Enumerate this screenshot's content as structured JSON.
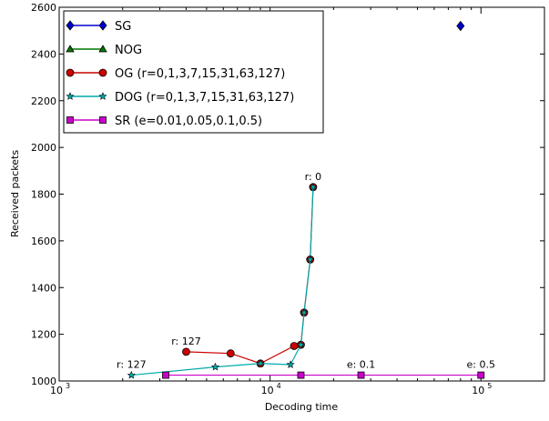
{
  "chart_data": {
    "type": "line",
    "title": "",
    "xlabel": "Decoding time",
    "ylabel": "Received packets",
    "xscale": "log",
    "xlim": [
      1000,
      200000
    ],
    "ylim": [
      1000,
      2600
    ],
    "x_ticks": [
      {
        "value": 1000,
        "base": "10",
        "exp": "3"
      },
      {
        "value": 10000,
        "base": "10",
        "exp": "4"
      },
      {
        "value": 100000,
        "base": "10",
        "exp": "5"
      }
    ],
    "y_ticks": [
      1000,
      1200,
      1400,
      1600,
      1800,
      2000,
      2200,
      2400,
      2600
    ],
    "grid": false,
    "legend_position": "top-left",
    "series": [
      {
        "name": "SG",
        "color": "#0000cc",
        "marker": "diamond",
        "points": [
          [
            80000,
            2520
          ]
        ]
      },
      {
        "name": "NOG",
        "color": "#007700",
        "marker": "triangle",
        "points": []
      },
      {
        "name": "OG (r=0,1,3,7,15,31,63,127)",
        "color": "#cc0000",
        "marker": "circle",
        "points": [
          [
            16000,
            1830
          ],
          [
            15500,
            1520
          ],
          [
            14500,
            1293
          ],
          [
            14000,
            1155
          ],
          [
            13000,
            1150
          ],
          [
            9000,
            1075
          ],
          [
            6500,
            1118
          ],
          [
            4000,
            1125
          ]
        ]
      },
      {
        "name": "DOG (r=0,1,3,7,15,31,63,127)",
        "color": "#00aaaa",
        "marker": "star",
        "points": [
          [
            16000,
            1830
          ],
          [
            15500,
            1520
          ],
          [
            14500,
            1293
          ],
          [
            14000,
            1155
          ],
          [
            12500,
            1070
          ],
          [
            9000,
            1075
          ],
          [
            5500,
            1060
          ],
          [
            2200,
            1025
          ]
        ]
      },
      {
        "name": "SR (e=0.01,0.05,0.1,0.5)",
        "color": "#cc00cc",
        "marker": "square",
        "points": [
          [
            3200,
            1025
          ],
          [
            14000,
            1025
          ],
          [
            27000,
            1025
          ],
          [
            100000,
            1025
          ]
        ]
      }
    ],
    "annotations": [
      {
        "text": "r: 0",
        "x": 16000,
        "y": 1830
      },
      {
        "text": "r: 127",
        "x": 4000,
        "y": 1125
      },
      {
        "text": "r: 127",
        "x": 2200,
        "y": 1025
      },
      {
        "text": "e: 0.1",
        "x": 27000,
        "y": 1025
      },
      {
        "text": "e: 0.5",
        "x": 100000,
        "y": 1025
      }
    ]
  }
}
